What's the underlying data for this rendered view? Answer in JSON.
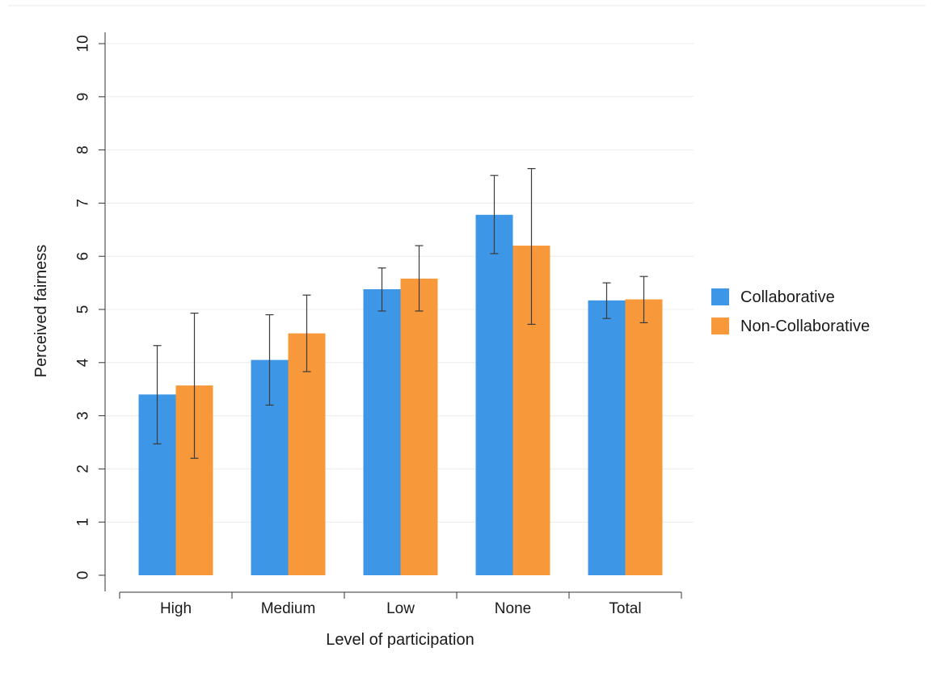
{
  "chart_data": {
    "type": "bar",
    "title": "",
    "xlabel": "Level of participation",
    "ylabel": "Perceived fairness",
    "categories": [
      "High",
      "Medium",
      "Low",
      "None",
      "Total"
    ],
    "ylim": [
      0,
      10
    ],
    "yticks": [
      0,
      1,
      2,
      3,
      4,
      5,
      6,
      7,
      8,
      9,
      10
    ],
    "grid": true,
    "legend_position": "right",
    "series": [
      {
        "name": "Collaborative",
        "color": "#3d97e6",
        "values": [
          3.4,
          4.05,
          5.38,
          6.78,
          5.17
        ],
        "error_low": [
          2.47,
          3.2,
          4.97,
          6.05,
          4.83
        ],
        "error_high": [
          4.32,
          4.9,
          5.78,
          7.52,
          5.5
        ]
      },
      {
        "name": "Non-Collaborative",
        "color": "#f7993a",
        "values": [
          3.57,
          4.55,
          5.58,
          6.2,
          5.19
        ],
        "error_low": [
          2.2,
          3.83,
          4.97,
          4.72,
          4.75
        ],
        "error_high": [
          4.93,
          5.27,
          6.2,
          7.65,
          5.62
        ]
      }
    ]
  }
}
